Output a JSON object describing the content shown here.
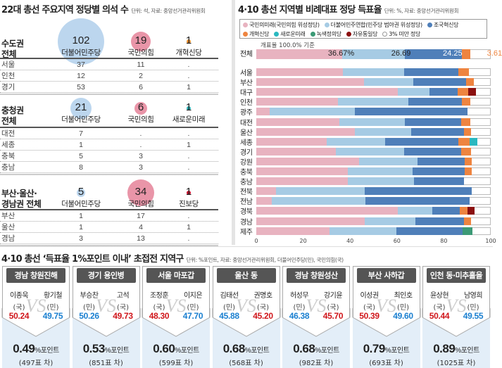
{
  "left": {
    "title": "22대 총선 주요지역 정당별 의석 수",
    "unit": "단위: 석, 자료: 중앙선거관리위원회",
    "regions": [
      {
        "label1": "수도권",
        "label2": "전체",
        "parties": [
          {
            "name": "더불어민주당",
            "total": "102",
            "color": "#bcd6ee"
          },
          {
            "name": "국민의힘",
            "total": "19",
            "color": "#e995a8"
          },
          {
            "name": "개혁신당",
            "total": "1",
            "color": "#f0922f"
          }
        ],
        "rows": [
          {
            "name": "서울",
            "v": [
              "37",
              "11",
              "."
            ]
          },
          {
            "name": "인천",
            "v": [
              "12",
              "2",
              "."
            ]
          },
          {
            "name": "경기",
            "v": [
              "53",
              "6",
              "1"
            ]
          }
        ]
      },
      {
        "label1": "충청권",
        "label2": "전체",
        "parties": [
          {
            "name": "더불어민주당",
            "total": "21",
            "color": "#bcd6ee"
          },
          {
            "name": "국민의힘",
            "total": "6",
            "color": "#e995a8"
          },
          {
            "name": "새로운미래",
            "total": "1",
            "color": "#2ab0b5"
          }
        ],
        "rows": [
          {
            "name": "대전",
            "v": [
              "7",
              ".",
              "."
            ]
          },
          {
            "name": "세종",
            "v": [
              "1",
              ".",
              "1"
            ]
          },
          {
            "name": "충북",
            "v": [
              "5",
              "3",
              "."
            ]
          },
          {
            "name": "충남",
            "v": [
              "8",
              "3",
              "."
            ]
          }
        ]
      },
      {
        "label1": "부산·울산·",
        "label2": "경남권 전체",
        "parties": [
          {
            "name": "더불어민주당",
            "total": "5",
            "color": "#bcd6ee"
          },
          {
            "name": "국민의힘",
            "total": "34",
            "color": "#e995a8"
          },
          {
            "name": "진보당",
            "total": "1",
            "color": "#c8102e"
          }
        ],
        "rows": [
          {
            "name": "부산",
            "v": [
              "1",
              "17",
              "."
            ]
          },
          {
            "name": "울산",
            "v": [
              "1",
              "4",
              "1"
            ]
          },
          {
            "name": "경남",
            "v": [
              "3",
              "13",
              "."
            ]
          }
        ]
      }
    ]
  },
  "right": {
    "title": "4·10 총선 지역별 비례대표 정당 득표율",
    "unit": "단위: %, 자료: 중앙선거관리위원회",
    "note": "개표율 100.0% 기준",
    "chart_data": {
      "type": "bar",
      "stacked": true,
      "orientation": "horizontal",
      "xlim": [
        0,
        100
      ],
      "xticks": [
        "0",
        "20",
        "40",
        "60",
        "80",
        "100"
      ],
      "legend_position": "top",
      "series": [
        {
          "name": "국민의미래(국민의힘 위성정당)",
          "color": "#e8b3c0"
        },
        {
          "name": "더불어민주연합(민주당 범야권 위성정당)",
          "color": "#a6cbe4"
        },
        {
          "name": "조국혁신당",
          "color": "#4f7fb9"
        },
        {
          "name": "개혁신당",
          "color": "#ee8440"
        },
        {
          "name": "새로운미래",
          "color": "#2ab8c0"
        },
        {
          "name": "녹색정의당",
          "color": "#3c9a76"
        },
        {
          "name": "자유통일당",
          "color": "#8b1010"
        },
        {
          "name": "3% 미만 정당",
          "color": "#ffffff"
        }
      ],
      "categories": [
        "전체",
        "서울",
        "부산",
        "대구",
        "인천",
        "광주",
        "대전",
        "울산",
        "세종",
        "경기",
        "강원",
        "충북",
        "충남",
        "전북",
        "전남",
        "경북",
        "경남",
        "제주"
      ],
      "values": [
        [
          36.67,
          26.69,
          24.25,
          3.61,
          0,
          0,
          0
        ],
        [
          37,
          26.2,
          23,
          4.5,
          0,
          0,
          0
        ],
        [
          46,
          20.9,
          22.6,
          3.2,
          0,
          0,
          0
        ],
        [
          60.4,
          13.6,
          11.8,
          4.7,
          0,
          0,
          3.2
        ],
        [
          34.8,
          30.2,
          22.8,
          3.4,
          0,
          0,
          0
        ],
        [
          5.7,
          36.4,
          47.9,
          0,
          0,
          0,
          0
        ],
        [
          35.5,
          27.9,
          24.1,
          3.8,
          0,
          0,
          0
        ],
        [
          41.9,
          24.3,
          22.3,
          3.2,
          0,
          0,
          0
        ],
        [
          29.9,
          25.1,
          31.2,
          4.7,
          3.3,
          0,
          0
        ],
        [
          34,
          29.1,
          24.4,
          4.2,
          0,
          0,
          0
        ],
        [
          43.7,
          25,
          20.1,
          3.1,
          0,
          0,
          0
        ],
        [
          39.1,
          27.6,
          22.1,
          3.1,
          0,
          0,
          0
        ],
        [
          39,
          28.4,
          21.3,
          0,
          0,
          0,
          0
        ],
        [
          8.4,
          37.7,
          45.8,
          0,
          0,
          0,
          0
        ],
        [
          6.5,
          40,
          44.4,
          0,
          0,
          0,
          0
        ],
        [
          60.4,
          14.6,
          11.9,
          3.3,
          0,
          0,
          3.0
        ],
        [
          46.2,
          21.6,
          20.7,
          3.0,
          0,
          0,
          0
        ],
        [
          31.3,
          28.5,
          28.1,
          0,
          0,
          4.3,
          0
        ]
      ],
      "data_labels_total": [
        "36.67%",
        "26.69",
        "24.25",
        "3.61"
      ]
    }
  },
  "bottom": {
    "title": "4·10 총선 ‘득표율 1%포인트 이내’ 초접전 지역구",
    "unit": "단위: %포인트, 자료: 중앙선거관리위원회, 더불어민주당(민), 국민의힘(국)",
    "vs": "VS",
    "margin_unit": "%포인트",
    "colors": {
      "국": "#d0161b",
      "민": "#1a7fd0"
    },
    "cards": [
      {
        "district": "경남 창원진해",
        "a": {
          "name": "이종욱",
          "party": "(국)",
          "p": "국",
          "pct": "50.24"
        },
        "b": {
          "name": "황기철",
          "party": "(민)",
          "p": "민",
          "pct": "49.75"
        },
        "margin": "0.49",
        "votes": "(497표 차)"
      },
      {
        "district": "경기 용인병",
        "a": {
          "name": "부승찬",
          "party": "(민)",
          "p": "민",
          "pct": "50.26"
        },
        "b": {
          "name": "고석",
          "party": "(국)",
          "p": "국",
          "pct": "49.73"
        },
        "margin": "0.53",
        "votes": "(851표 차)"
      },
      {
        "district": "서울 마포갑",
        "a": {
          "name": "조정훈",
          "party": "(국)",
          "p": "국",
          "pct": "48.30"
        },
        "b": {
          "name": "이지은",
          "party": "(민)",
          "p": "민",
          "pct": "47.70"
        },
        "margin": "0.60",
        "votes": "(599표 차)"
      },
      {
        "district": "울산 동",
        "a": {
          "name": "김태선",
          "party": "(민)",
          "p": "민",
          "pct": "45.88"
        },
        "b": {
          "name": "권명호",
          "party": "(국)",
          "p": "국",
          "pct": "45.20"
        },
        "margin": "0.68",
        "votes": "(568표 차)"
      },
      {
        "district": "경남 창원성산",
        "a": {
          "name": "허성무",
          "party": "(민)",
          "p": "민",
          "pct": "46.38"
        },
        "b": {
          "name": "강기윤",
          "party": "(국)",
          "p": "국",
          "pct": "45.70"
        },
        "margin": "0.68",
        "votes": "(982표 차)"
      },
      {
        "district": "부산 사하갑",
        "a": {
          "name": "이성권",
          "party": "(국)",
          "p": "국",
          "pct": "50.39"
        },
        "b": {
          "name": "최인호",
          "party": "(민)",
          "p": "민",
          "pct": "49.60"
        },
        "margin": "0.79",
        "votes": "(693표 차)"
      },
      {
        "district": "인천 동·미추홀을",
        "a": {
          "name": "윤상현",
          "party": "(국)",
          "p": "국",
          "pct": "50.44"
        },
        "b": {
          "name": "남영희",
          "party": "(민)",
          "p": "민",
          "pct": "49.55"
        },
        "margin": "0.89",
        "votes": "(1025표 차)"
      }
    ]
  }
}
